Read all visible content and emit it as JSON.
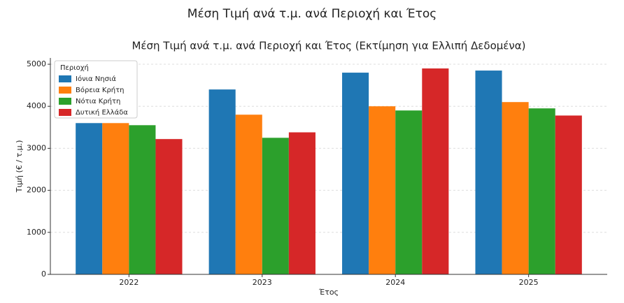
{
  "chart_data": {
    "type": "bar",
    "title": "Μέση Τιμή ανά τ.μ. ανά Περιοχή και Έτος",
    "subtitle": "Μέση Τιμή ανά τ.μ. ανά Περιοχή και Έτος (Εκτίμηση για Ελλιπή Δεδομένα)",
    "x_label": "Έτος",
    "y_label": "Τιμή (€ / τ.μ.)",
    "legend_title": "Περιοχή",
    "legend_position": "upper-left",
    "grid": true,
    "categories": [
      "2022",
      "2023",
      "2024",
      "2025"
    ],
    "series": [
      {
        "name": "Ιόνια Νησιά",
        "color": "#1f77b4",
        "values": [
          3600,
          4400,
          4800,
          4850
        ]
      },
      {
        "name": "Βόρεια Κρήτη",
        "color": "#ff7f0e",
        "values": [
          3600,
          3800,
          4000,
          4100
        ]
      },
      {
        "name": "Νότια Κρήτη",
        "color": "#2ca02c",
        "values": [
          3550,
          3250,
          3900,
          3950
        ]
      },
      {
        "name": "Δυτική Ελλάδα",
        "color": "#d62728",
        "values": [
          3220,
          3380,
          4900,
          3780
        ]
      }
    ],
    "ylim": [
      0,
      5150
    ],
    "yticks": [
      0,
      1000,
      2000,
      3000,
      4000,
      5000
    ]
  }
}
